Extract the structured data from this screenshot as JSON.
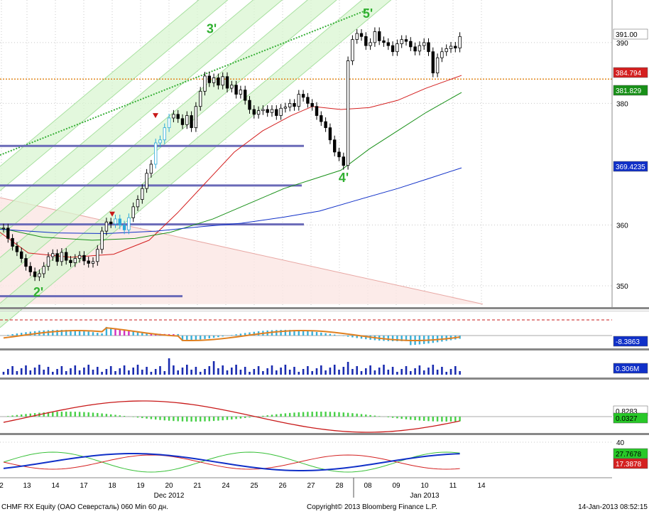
{
  "chart_data": {
    "type": "candlestick",
    "title": "",
    "wave_labels": [
      {
        "text": "2'",
        "x": 13.5,
        "y": 349.2
      },
      {
        "text": "3'",
        "x": 21.5,
        "y": 392.5
      },
      {
        "text": "4'",
        "x": 28.4,
        "y": 368.0
      },
      {
        "text": "5'",
        "x": 8.1,
        "y": 395.0
      }
    ],
    "y_axis": {
      "ticks": [
        "350",
        "360",
        "380",
        "390"
      ],
      "range": [
        346.5,
        397
      ]
    },
    "x_axis": {
      "day_ticks": [
        "2",
        "13",
        "14",
        "17",
        "18",
        "19",
        "20",
        "21",
        "24",
        "25",
        "26",
        "27",
        "28",
        "08",
        "09",
        "10",
        "11",
        "14"
      ],
      "month_labels": [
        "Dec 2012",
        "Jan 2013"
      ]
    },
    "price_labels": [
      {
        "text": "391.00",
        "bg": "#ffffff",
        "fg": "#000000"
      },
      {
        "text": "384.794",
        "bg": "#d42020",
        "fg": "#ffffff"
      },
      {
        "text": "381.829",
        "bg": "#189018",
        "fg": "#ffffff"
      },
      {
        "text": "369.4235",
        "bg": "#1030c8",
        "fg": "#ffffff"
      }
    ],
    "panel_labels": {
      "osc1": {
        "text": "-8.3863",
        "bg": "#1030c8",
        "fg": "#ffffff"
      },
      "volume": {
        "text": "0.306M",
        "bg": "#1030c8",
        "fg": "#ffffff"
      },
      "macd": [
        {
          "text": "0.8283",
          "bg": "#ffffff",
          "fg": "#000000"
        },
        {
          "text": "0.0327",
          "bg": "#28c828",
          "fg": "#000000"
        }
      ],
      "dmi_tick": "40",
      "dmi": [
        {
          "text": "27.7678",
          "bg": "#28c828",
          "fg": "#000000"
        },
        {
          "text": "17.3878",
          "bg": "#d42020",
          "fg": "#ffffff"
        }
      ]
    },
    "levels": {
      "support_orange": 384.0,
      "horizontal_blue": [
        373.0,
        366.5,
        360.1,
        348.3
      ]
    },
    "series": [
      {
        "name": "",
        "color": "#d42020",
        "values": [
          [
            0,
            358.8
          ],
          [
            40,
            355.4
          ],
          [
            100,
            354.7
          ],
          [
            160,
            355.2
          ],
          [
            210,
            357.5
          ],
          [
            250,
            362.0
          ],
          [
            290,
            367.0
          ],
          [
            330,
            372.0
          ],
          [
            370,
            375.5
          ],
          [
            410,
            378.0
          ],
          [
            440,
            379.5
          ],
          [
            480,
            379.0
          ],
          [
            520,
            379.3
          ],
          [
            560,
            380.5
          ],
          [
            600,
            382.5
          ],
          [
            650,
            384.6
          ]
        ]
      },
      {
        "name": "",
        "color": "#189018",
        "values": [
          [
            0,
            359.5
          ],
          [
            60,
            358.0
          ],
          [
            130,
            357.5
          ],
          [
            190,
            357.8
          ],
          [
            240,
            358.8
          ],
          [
            300,
            361.0
          ],
          [
            350,
            363.5
          ],
          [
            400,
            366.0
          ],
          [
            440,
            367.5
          ],
          [
            480,
            369.0
          ],
          [
            520,
            372.5
          ],
          [
            560,
            375.5
          ],
          [
            600,
            378.5
          ],
          [
            650,
            381.8
          ]
        ]
      },
      {
        "name": "",
        "color": "#1030c8",
        "values": [
          [
            0,
            359.3
          ],
          [
            80,
            358.7
          ],
          [
            150,
            358.6
          ],
          [
            220,
            359.0
          ],
          [
            280,
            359.7
          ],
          [
            340,
            360.3
          ],
          [
            400,
            361.3
          ],
          [
            450,
            362.3
          ],
          [
            500,
            364.0
          ],
          [
            560,
            366.0
          ],
          [
            600,
            367.5
          ],
          [
            650,
            369.4
          ]
        ]
      }
    ],
    "candles": [
      {
        "i": 0,
        "c": 359.5
      },
      {
        "i": 1,
        "c": 357.8
      },
      {
        "i": 2,
        "c": 356.5
      },
      {
        "i": 3,
        "c": 355.6
      },
      {
        "i": 4,
        "c": 354.5
      },
      {
        "i": 5,
        "c": 353.2
      },
      {
        "i": 6,
        "c": 352.3
      },
      {
        "i": 7,
        "c": 351.5
      },
      {
        "i": 8,
        "c": 352.0
      },
      {
        "i": 9,
        "c": 353.2
      },
      {
        "i": 10,
        "c": 354.8
      },
      {
        "i": 11,
        "c": 355.3
      },
      {
        "i": 12,
        "c": 354.0
      },
      {
        "i": 13,
        "c": 355.5
      },
      {
        "i": 14,
        "c": 354.2
      },
      {
        "i": 15,
        "c": 353.8
      },
      {
        "i": 16,
        "c": 354.5
      },
      {
        "i": 17,
        "c": 355.0
      },
      {
        "i": 18,
        "c": 354.1
      },
      {
        "i": 19,
        "c": 353.7
      },
      {
        "i": 20,
        "c": 354.0
      },
      {
        "i": 21,
        "c": 356.0
      },
      {
        "i": 22,
        "c": 359.0
      },
      {
        "i": 23,
        "c": 360.5
      },
      {
        "i": 24,
        "c": 360.2
      },
      {
        "i": 25,
        "c": 361.0
      },
      {
        "i": 26,
        "c": 360.0
      },
      {
        "i": 27,
        "c": 359.2
      },
      {
        "i": 28,
        "c": 361.2
      },
      {
        "i": 29,
        "c": 363.0
      },
      {
        "i": 30,
        "c": 364.2
      },
      {
        "i": 31,
        "c": 366.0
      },
      {
        "i": 32,
        "c": 368.5
      },
      {
        "i": 33,
        "c": 370.0
      },
      {
        "i": 34,
        "c": 373.5
      },
      {
        "i": 35,
        "c": 374.0
      },
      {
        "i": 36,
        "c": 376.0
      },
      {
        "i": 37,
        "c": 377.6
      },
      {
        "i": 38,
        "c": 378.2
      },
      {
        "i": 39,
        "c": 377.5
      },
      {
        "i": 40,
        "c": 376.5
      },
      {
        "i": 41,
        "c": 378.0
      },
      {
        "i": 42,
        "c": 376.0
      },
      {
        "i": 43,
        "c": 379.5
      },
      {
        "i": 44,
        "c": 382.0
      },
      {
        "i": 45,
        "c": 384.5
      },
      {
        "i": 46,
        "c": 383.4
      },
      {
        "i": 47,
        "c": 384.2
      },
      {
        "i": 48,
        "c": 383.0
      },
      {
        "i": 49,
        "c": 384.4
      },
      {
        "i": 50,
        "c": 382.5
      },
      {
        "i": 51,
        "c": 383.0
      },
      {
        "i": 52,
        "c": 381.5
      },
      {
        "i": 53,
        "c": 382.2
      },
      {
        "i": 54,
        "c": 380.5
      },
      {
        "i": 55,
        "c": 379.0
      },
      {
        "i": 56,
        "c": 378.2
      },
      {
        "i": 57,
        "c": 378.8
      },
      {
        "i": 58,
        "c": 379.0
      },
      {
        "i": 59,
        "c": 378.5
      },
      {
        "i": 60,
        "c": 379.0
      },
      {
        "i": 61,
        "c": 378.0
      },
      {
        "i": 62,
        "c": 379.2
      },
      {
        "i": 63,
        "c": 379.4
      },
      {
        "i": 64,
        "c": 380.0
      },
      {
        "i": 65,
        "c": 379.5
      },
      {
        "i": 66,
        "c": 381.5
      },
      {
        "i": 67,
        "c": 381.0
      },
      {
        "i": 68,
        "c": 380.0
      },
      {
        "i": 69,
        "c": 379.5
      },
      {
        "i": 70,
        "c": 378.0
      },
      {
        "i": 71,
        "c": 377.0
      },
      {
        "i": 72,
        "c": 376.0
      },
      {
        "i": 73,
        "c": 374.0
      },
      {
        "i": 74,
        "c": 372.0
      },
      {
        "i": 75,
        "c": 371.2
      },
      {
        "i": 76,
        "c": 369.8
      },
      {
        "i": 77,
        "c": 387.0
      },
      {
        "i": 78,
        "c": 390.5
      },
      {
        "i": 79,
        "c": 391.5
      },
      {
        "i": 80,
        "c": 391.0
      },
      {
        "i": 81,
        "c": 389.5
      },
      {
        "i": 82,
        "c": 390.0
      },
      {
        "i": 83,
        "c": 391.8
      },
      {
        "i": 84,
        "c": 390.3
      },
      {
        "i": 85,
        "c": 390.0
      },
      {
        "i": 86,
        "c": 389.5
      },
      {
        "i": 87,
        "c": 388.5
      },
      {
        "i": 88,
        "c": 389.8
      },
      {
        "i": 89,
        "c": 390.5
      },
      {
        "i": 90,
        "c": 390.2
      },
      {
        "i": 91,
        "c": 389.3
      },
      {
        "i": 92,
        "c": 388.6
      },
      {
        "i": 93,
        "c": 389.5
      },
      {
        "i": 94,
        "c": 390.0
      },
      {
        "i": 95,
        "c": 388.5
      },
      {
        "i": 96,
        "c": 385.0
      },
      {
        "i": 97,
        "c": 387.5
      },
      {
        "i": 98,
        "c": 388.5
      },
      {
        "i": 99,
        "c": 389.0
      },
      {
        "i": 100,
        "c": 389.4
      },
      {
        "i": 101,
        "c": 389.1
      },
      {
        "i": 102,
        "c": 391.0
      }
    ]
  },
  "footer": {
    "left": "CHMF RX Equity (OAO Северсталь) 060 Min 60 дн.",
    "center": "Copyright© 2013 Bloomberg Finance L.P.",
    "right": "14-Jan-2013 08:52:15"
  }
}
